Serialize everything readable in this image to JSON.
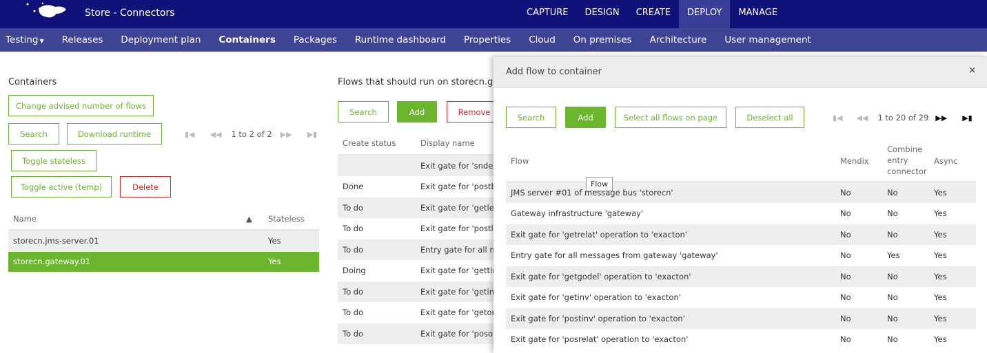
{
  "header": {
    "title": "Store - Connectors",
    "tabs": [
      "CAPTURE",
      "DESIGN",
      "CREATE",
      "DEPLOY",
      "MANAGE"
    ],
    "active_tab": "DEPLOY"
  },
  "nav": {
    "items": [
      "Testing",
      "Releases",
      "Deployment plan",
      "Containers",
      "Packages",
      "Runtime dashboard",
      "Properties",
      "Cloud",
      "On premises",
      "Architecture",
      "User management"
    ],
    "active": "Containers"
  },
  "containers": {
    "title": "Containers",
    "change_btn": "Change advised number of flows",
    "search_btn": "Search",
    "download_btn": "Download runtime",
    "pager": "1 to 2 of 2",
    "toggle_stateless_btn": "Toggle stateless",
    "toggle_active_btn": "Toggle active (temp)",
    "delete_btn": "Delete",
    "columns": [
      "Name",
      "Stateless"
    ],
    "sort_icon": "▲",
    "rows": [
      {
        "name": "storecn.jms-server.01",
        "stateless": "Yes"
      },
      {
        "name": "storecn.gateway.01",
        "stateless": "Yes",
        "selected": true
      }
    ]
  },
  "flows": {
    "title": "Flows that should run on storecn.ga",
    "search_btn": "Search",
    "add_btn": "Add",
    "remove_btn": "Remove",
    "columns": [
      "Create status",
      "Display name"
    ],
    "rows": [
      [
        "",
        "Exit gate for 'sndem"
      ],
      [
        "Done",
        "Exit gate for 'postbk"
      ],
      [
        "To do",
        "Exit gate for 'getlea"
      ],
      [
        "To do",
        "Exit gate for 'postle"
      ],
      [
        "To do",
        "Entry gate for all me"
      ],
      [
        "Doing",
        "Exit gate for 'gettinl"
      ],
      [
        "To do",
        "Exit gate for 'getinv"
      ],
      [
        "To do",
        "Exit gate for 'getor'"
      ],
      [
        "To do",
        "Exit gate for 'posorc"
      ]
    ]
  },
  "modal": {
    "title": "Add flow to container",
    "close": "×",
    "search_btn": "Search",
    "add_btn": "Add",
    "select_all_btn": "Select all flows on page",
    "deselect_btn": "Deselect all",
    "pager": "1 to 20 of 29",
    "columns": [
      "Flow",
      "Mendix",
      "Combine entry connector",
      "Async"
    ],
    "tooltip": "Flow",
    "rows": [
      [
        "JMS server #01 of message bus 'storecn'",
        "No",
        "No",
        "Yes"
      ],
      [
        "Gateway infrastructure 'gateway'",
        "No",
        "No",
        "Yes"
      ],
      [
        "Exit gate for 'getrelat' operation to 'exacton'",
        "No",
        "No",
        "Yes"
      ],
      [
        "Entry gate for all messages from gateway 'gateway'",
        "No",
        "Yes",
        "Yes"
      ],
      [
        "Exit gate for 'getgodel' operation to 'exacton'",
        "No",
        "No",
        "Yes"
      ],
      [
        "Exit gate for 'getinv' operation to 'exacton'",
        "No",
        "No",
        "Yes"
      ],
      [
        "Exit gate for 'postinv' operation to 'exacton'",
        "No",
        "No",
        "Yes"
      ],
      [
        "Exit gate for 'posrelat' operation to 'exacton'",
        "No",
        "No",
        "Yes"
      ]
    ]
  },
  "colors": {
    "topbar": "#10127a",
    "navbar": "#3e4393",
    "accent": "#6ab72e",
    "danger": "#ee2222"
  }
}
